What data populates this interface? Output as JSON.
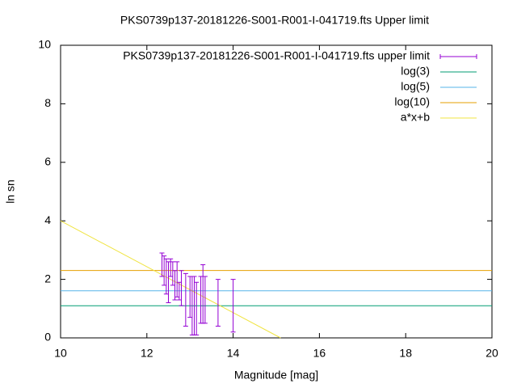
{
  "chart_data": {
    "type": "errorbar",
    "title": "PKS0739p137-20181226-S001-R001-I-041719.fts Upper limit",
    "xlabel": "Magnitude [mag]",
    "ylabel": "ln sn",
    "xlim": [
      10,
      20
    ],
    "xticks": [
      10,
      12,
      14,
      16,
      18,
      20
    ],
    "ylim": [
      0,
      10
    ],
    "yticks": [
      0,
      2,
      4,
      6,
      8,
      10
    ],
    "legend": "top-right",
    "points": {
      "name": "PKS0739p137-20181226-S001-R001-I-041719.fts upper limit",
      "color": "#9400d3",
      "x": [
        12.35,
        12.4,
        12.45,
        12.5,
        12.55,
        12.6,
        12.65,
        12.7,
        12.75,
        12.8,
        12.9,
        13.0,
        13.05,
        13.1,
        13.15,
        13.25,
        13.3,
        13.35,
        13.65,
        14.0
      ],
      "values": [
        2.5,
        2.3,
        2.1,
        1.9,
        2.4,
        2.2,
        1.8,
        2.0,
        1.6,
        1.7,
        1.3,
        1.4,
        1.1,
        1.1,
        1.0,
        1.3,
        1.5,
        1.3,
        1.2,
        1.1
      ],
      "errors": [
        0.4,
        0.5,
        0.6,
        0.7,
        0.3,
        0.4,
        0.5,
        0.6,
        0.3,
        0.6,
        0.9,
        0.7,
        1.0,
        1.0,
        0.9,
        0.8,
        1.0,
        0.8,
        0.8,
        0.9
      ]
    },
    "series": [
      {
        "name": "log(3)",
        "color": "#009e73",
        "x": [
          10,
          20
        ],
        "values": [
          1.0986,
          1.0986
        ]
      },
      {
        "name": "log(5)",
        "color": "#56b4e9",
        "x": [
          10,
          20
        ],
        "values": [
          1.6094,
          1.6094
        ]
      },
      {
        "name": "log(10)",
        "color": "#e69f00",
        "x": [
          10,
          20
        ],
        "values": [
          2.3026,
          2.3026
        ]
      },
      {
        "name": "a*x+b",
        "color": "#f0e442",
        "x": [
          10,
          15.1
        ],
        "values": [
          4,
          0
        ]
      }
    ]
  }
}
